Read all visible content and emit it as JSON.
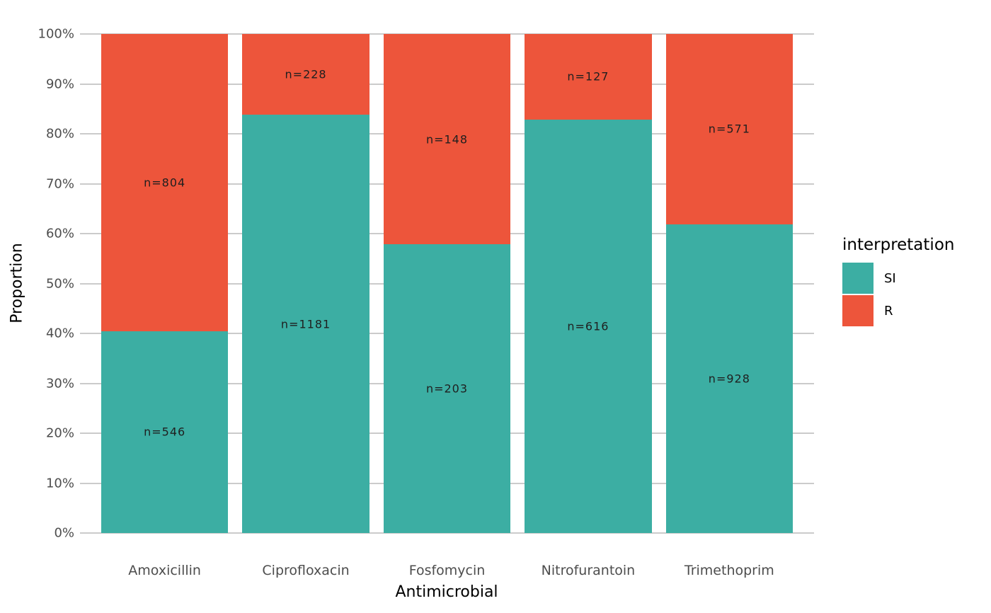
{
  "chart_data": {
    "type": "bar",
    "subtype": "stacked_percent",
    "xlabel": "Antimicrobial",
    "ylabel": "Proportion",
    "categories": [
      "Amoxicillin",
      "Ciprofloxacin",
      "Fosfomycin",
      "Nitrofurantoin",
      "Trimethoprim"
    ],
    "series": [
      {
        "name": "SI",
        "color": "#3CAEA3",
        "values": [
          546,
          1181,
          203,
          616,
          928
        ],
        "labels": [
          "n=546",
          "n=1181",
          "n=203",
          "n=616",
          "n=928"
        ]
      },
      {
        "name": "R",
        "color": "#ED553B",
        "values": [
          804,
          228,
          148,
          127,
          571
        ],
        "labels": [
          "n=804",
          "n=228",
          "n=148",
          "n=127",
          "n=571"
        ]
      }
    ],
    "proportions_si_percent": [
      40.4,
      83.8,
      57.8,
      82.9,
      61.9
    ],
    "yticks": [
      "0%",
      "10%",
      "20%",
      "30%",
      "40%",
      "50%",
      "60%",
      "70%",
      "80%",
      "90%",
      "100%"
    ],
    "ylim": [
      0,
      100
    ],
    "grid": true,
    "legend": {
      "title": "interpretation",
      "position": "right",
      "entries": [
        "SI",
        "R"
      ]
    }
  },
  "style": {
    "background": "#ffffff",
    "grid_color": "#cbcbcb",
    "tick_label_color": "#4d4d4d",
    "axis_title_color": "#000000",
    "bar_label_color": "#1f1f1f",
    "si_color": "#3CAEA3",
    "r_color": "#ED553B"
  }
}
